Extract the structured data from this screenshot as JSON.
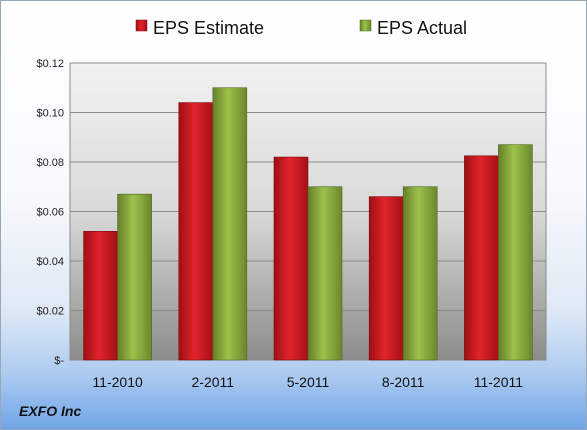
{
  "company": "EXFO Inc",
  "chart_data": {
    "type": "bar",
    "categories": [
      "11-2010",
      "2-2011",
      "5-2011",
      "8-2011",
      "11-2011"
    ],
    "series": [
      {
        "name": "EPS Estimate",
        "values": [
          0.052,
          0.104,
          0.082,
          0.066,
          0.0825
        ],
        "color": "#c8161d"
      },
      {
        "name": "EPS Actual",
        "values": [
          0.067,
          0.11,
          0.07,
          0.07,
          0.087
        ],
        "color": "#86a83c"
      }
    ],
    "yticks": [
      0,
      0.02,
      0.04,
      0.06,
      0.08,
      0.1,
      0.12
    ],
    "ytick_labels": [
      "$-",
      "$0.02",
      "$0.04",
      "$0.06",
      "$0.08",
      "$0.10",
      "$0.12"
    ],
    "ylim": [
      0,
      0.12
    ],
    "grid": true,
    "legend_position": "top"
  }
}
